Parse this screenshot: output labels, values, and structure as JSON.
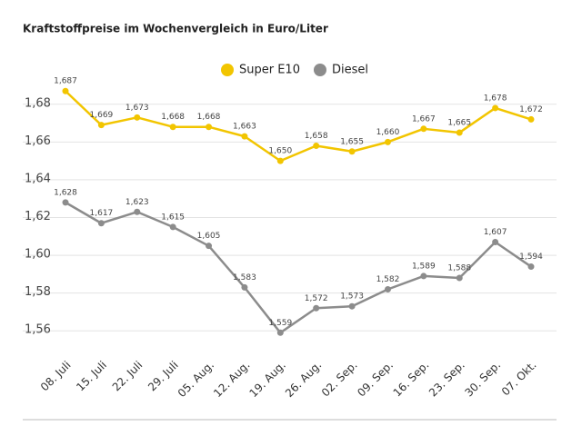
{
  "chart_data": {
    "type": "line",
    "title": "Kraftstoffpreise im Wochenvergleich in Euro/Liter",
    "categories": [
      "08. Juli",
      "15. Juli",
      "22. Juli",
      "29. Juli",
      "05. Aug.",
      "12. Aug.",
      "19. Aug.",
      "26. Aug.",
      "02. Sep.",
      "09. Sep.",
      "16. Sep.",
      "23. Sep.",
      "30. Sep.",
      "07. Okt."
    ],
    "series": [
      {
        "name": "Super E10",
        "color": "#f2c500",
        "values": [
          1.687,
          1.669,
          1.673,
          1.668,
          1.668,
          1.663,
          1.65,
          1.658,
          1.655,
          1.66,
          1.667,
          1.665,
          1.678,
          1.672
        ],
        "value_labels": [
          "1,687",
          "1,669",
          "1,673",
          "1,668",
          "1,668",
          "1,663",
          "1,650",
          "1,658",
          "1,655",
          "1,660",
          "1,667",
          "1,665",
          "1,678",
          "1,672"
        ]
      },
      {
        "name": "Diesel",
        "color": "#8c8c8c",
        "values": [
          1.628,
          1.617,
          1.623,
          1.615,
          1.605,
          1.583,
          1.559,
          1.572,
          1.573,
          1.582,
          1.589,
          1.588,
          1.607,
          1.594
        ],
        "value_labels": [
          "1,628",
          "1,617",
          "1,623",
          "1,615",
          "1,605",
          "1,583",
          "1,559",
          "1,572",
          "1,573",
          "1,582",
          "1,589",
          "1,588",
          "1,607",
          "1,594"
        ]
      }
    ],
    "ylim": [
      1.55,
      1.69
    ],
    "yticks": [
      {
        "value": 1.56,
        "label": "1,56"
      },
      {
        "value": 1.58,
        "label": "1,58"
      },
      {
        "value": 1.6,
        "label": "1,60"
      },
      {
        "value": 1.62,
        "label": "1,62"
      },
      {
        "value": 1.64,
        "label": "1,64"
      },
      {
        "value": 1.66,
        "label": "1,66"
      },
      {
        "value": 1.68,
        "label": "1,68"
      }
    ],
    "grid": true,
    "legend": "top"
  }
}
